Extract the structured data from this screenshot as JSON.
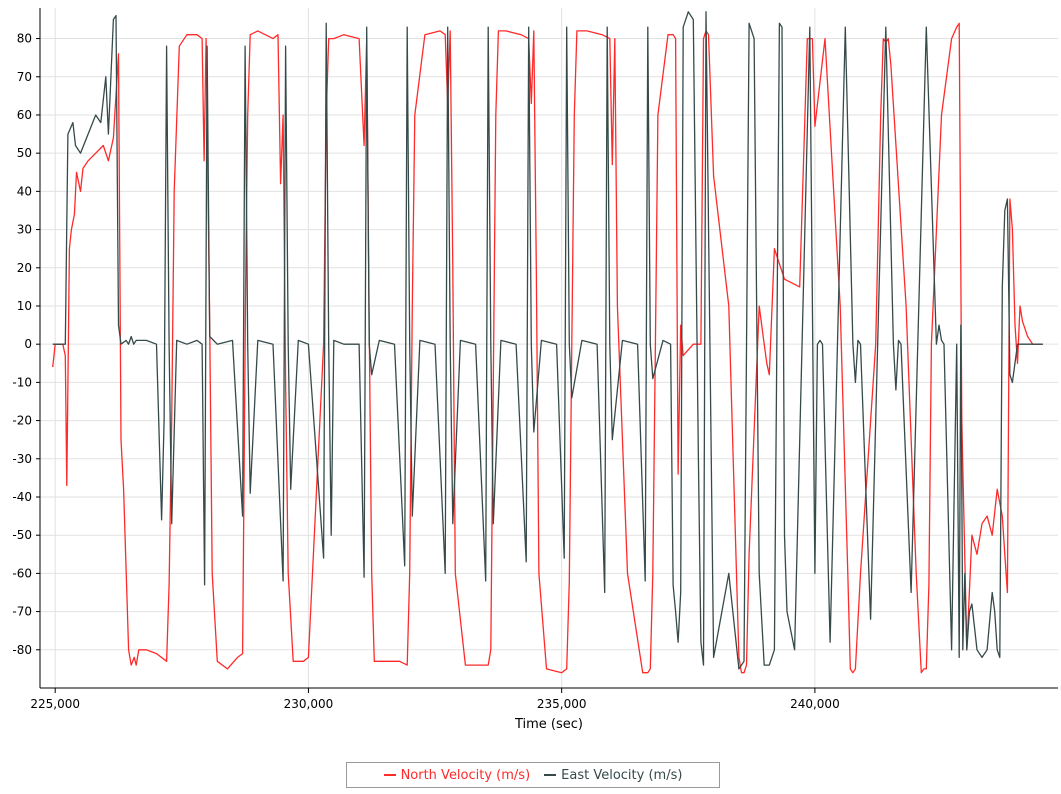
{
  "chart_data": {
    "type": "line",
    "title": "",
    "xlabel": "Time (sec)",
    "ylabel": "",
    "xlim": [
      224700,
      244800
    ],
    "ylim": [
      -90,
      88
    ],
    "xticks": [
      225000,
      230000,
      235000,
      240000
    ],
    "xtick_labels": [
      "225,000",
      "230,000",
      "235,000",
      "240,000"
    ],
    "yticks": [
      80,
      70,
      60,
      50,
      40,
      30,
      20,
      10,
      0,
      -10,
      -20,
      -30,
      -40,
      -50,
      -60,
      -70,
      -80
    ],
    "ytick_labels": [
      "80",
      "70",
      "60",
      "50",
      "40",
      "30",
      "20",
      "10",
      "0",
      "-10",
      "-20",
      "-30",
      "-40",
      "-50",
      "-60",
      "-70",
      "-80"
    ],
    "grid": true,
    "legend_position": "bottom",
    "series": [
      {
        "name": "North Velocity (m/s)",
        "color": "#ff2a2a",
        "x": [
          224950,
          225000,
          225150,
          225200,
          225230,
          225280,
          225320,
          225380,
          225420,
          225500,
          225550,
          225650,
          225800,
          225950,
          226050,
          226150,
          226250,
          226300,
          226350,
          226450,
          226500,
          226560,
          226600,
          226650,
          226800,
          227000,
          227200,
          227250,
          227300,
          227350,
          227450,
          227600,
          227800,
          227900,
          227940,
          227980,
          228050,
          228100,
          228200,
          228400,
          228600,
          228700,
          228760,
          228800,
          228850,
          229000,
          229300,
          229400,
          229450,
          229500,
          229550,
          229600,
          229700,
          229900,
          230000,
          230300,
          230350,
          230400,
          230450,
          230500,
          230700,
          231000,
          231100,
          231150,
          231200,
          231250,
          231300,
          231500,
          231800,
          231950,
          232000,
          232050,
          232100,
          232300,
          232600,
          232700,
          232750,
          232800,
          232850,
          232900,
          233100,
          233400,
          233550,
          233600,
          233650,
          233700,
          233750,
          233900,
          234200,
          234350,
          234400,
          234450,
          234500,
          234550,
          234700,
          235000,
          235100,
          235150,
          235200,
          235250,
          235300,
          235500,
          235800,
          235950,
          236000,
          236050,
          236100,
          236300,
          236600,
          236700,
          236750,
          236800,
          236850,
          236900,
          237100,
          237200,
          237250,
          237300,
          237350,
          237400,
          237600,
          237750,
          237800,
          237850,
          237900,
          238000,
          238300,
          238500,
          238550,
          238600,
          238650,
          238700,
          238900,
          239000,
          239050,
          239100,
          239200,
          239400,
          239700,
          239850,
          239900,
          239950,
          240000,
          240200,
          240500,
          240650,
          240700,
          240750,
          240800,
          240900,
          241200,
          241300,
          241350,
          241400,
          241450,
          241500,
          241800,
          242000,
          242100,
          242150,
          242200,
          242250,
          242300,
          242500,
          242700,
          242800,
          242850,
          242900,
          243000,
          243100,
          243200,
          243300,
          243400,
          243500,
          243600,
          243700,
          243750,
          243800,
          243850,
          243900,
          243950,
          244000,
          244050,
          244100,
          244200,
          244300,
          244500
        ],
        "y": [
          -6,
          0,
          0,
          -3,
          -37,
          25,
          30,
          34,
          45,
          40,
          46,
          48,
          50,
          52,
          48,
          54,
          76,
          -25,
          -38,
          -80,
          -84,
          -82,
          -84,
          -80,
          -80,
          -81,
          -83,
          -63,
          -20,
          40,
          78,
          81,
          81,
          80,
          48,
          80,
          5,
          -60,
          -83,
          -85,
          -82,
          -81,
          15,
          60,
          81,
          82,
          80,
          81,
          42,
          60,
          -10,
          -60,
          -83,
          -83,
          -82,
          0,
          60,
          80,
          80,
          80,
          81,
          80,
          52,
          80,
          5,
          -60,
          -83,
          -83,
          -83,
          -84,
          -60,
          10,
          60,
          81,
          82,
          81,
          63,
          82,
          20,
          -60,
          -84,
          -84,
          -84,
          -80,
          -10,
          60,
          82,
          82,
          81,
          80,
          63,
          82,
          20,
          -60,
          -85,
          -86,
          -85,
          -62,
          0,
          60,
          82,
          82,
          81,
          80,
          47,
          80,
          10,
          -60,
          -86,
          -86,
          -85,
          -60,
          0,
          60,
          81,
          81,
          80,
          -34,
          5,
          -3,
          0,
          0,
          80,
          82,
          81,
          44,
          10,
          -82,
          -86,
          -86,
          -84,
          -55,
          10,
          0,
          -5,
          -8,
          25,
          17,
          15,
          80,
          80,
          80,
          57,
          80,
          10,
          -60,
          -85,
          -86,
          -85,
          -60,
          0,
          60,
          80,
          79,
          80,
          73,
          10,
          -60,
          -86,
          -85,
          -85,
          -63,
          0,
          60,
          80,
          83,
          84,
          -20,
          -80,
          -50,
          -55,
          -47,
          -45,
          -50,
          -38,
          -45,
          -55,
          -65,
          38,
          30,
          5,
          -5,
          10,
          6,
          2,
          0,
          0
        ]
      },
      {
        "name": "East Velocity (m/s)",
        "color": "#364a4a",
        "x": [
          224950,
          225100,
          225200,
          225250,
          225350,
          225400,
          225500,
          225650,
          225800,
          225900,
          226000,
          226050,
          226150,
          226200,
          226250,
          226300,
          226400,
          226450,
          226500,
          226550,
          226600,
          226800,
          227000,
          227100,
          227150,
          227200,
          227250,
          227300,
          227400,
          227600,
          227800,
          227900,
          227950,
          228000,
          228050,
          228200,
          228500,
          228700,
          228750,
          228800,
          228850,
          229000,
          229300,
          229500,
          229550,
          229600,
          229650,
          229800,
          230000,
          230300,
          230350,
          230400,
          230450,
          230500,
          230700,
          231000,
          231100,
          231150,
          231200,
          231250,
          231400,
          231700,
          231900,
          231950,
          232000,
          232050,
          232200,
          232500,
          232700,
          232750,
          232800,
          232850,
          233000,
          233300,
          233500,
          233550,
          233600,
          233650,
          233800,
          234100,
          234300,
          234350,
          234400,
          234450,
          234600,
          234900,
          235050,
          235100,
          235150,
          235200,
          235400,
          235700,
          235850,
          235900,
          235950,
          236000,
          236200,
          236500,
          236650,
          236700,
          236750,
          236800,
          237000,
          237150,
          237200,
          237250,
          237300,
          237350,
          237400,
          237500,
          237600,
          237700,
          237750,
          237800,
          237850,
          238000,
          238300,
          238500,
          238600,
          238700,
          238800,
          238900,
          239000,
          239100,
          239200,
          239300,
          239350,
          239400,
          239450,
          239600,
          239900,
          240000,
          240050,
          240100,
          240150,
          240300,
          240600,
          240750,
          240800,
          240850,
          240900,
          241100,
          241400,
          241550,
          241600,
          241650,
          241700,
          241900,
          242200,
          242400,
          242450,
          242500,
          242550,
          242700,
          242800,
          242850,
          242880,
          242920,
          242960,
          243000,
          243050,
          243100,
          243200,
          243300,
          243400,
          243500,
          243550,
          243600,
          243650,
          243700,
          243750,
          243800,
          243850,
          243900,
          244000,
          244100,
          244500
        ],
        "y": [
          0,
          0,
          0,
          55,
          58,
          52,
          50,
          55,
          60,
          58,
          70,
          55,
          85,
          86,
          5,
          0,
          1,
          0,
          2,
          0,
          1,
          1,
          0,
          -46,
          -20,
          78,
          0,
          -47,
          1,
          0,
          1,
          0,
          -63,
          78,
          2,
          0,
          1,
          -45,
          78,
          0,
          -39,
          1,
          0,
          -62,
          78,
          0,
          -38,
          1,
          0,
          -56,
          84,
          0,
          -50,
          1,
          0,
          0,
          -61,
          83,
          0,
          -8,
          1,
          0,
          -58,
          83,
          0,
          -45,
          1,
          0,
          -60,
          83,
          0,
          -47,
          1,
          0,
          -62,
          83,
          0,
          -47,
          1,
          0,
          -57,
          83,
          0,
          -23,
          1,
          0,
          -56,
          83,
          0,
          -14,
          1,
          0,
          -65,
          83,
          0,
          -25,
          1,
          0,
          -62,
          83,
          0,
          -9,
          1,
          0,
          -63,
          -70,
          -78,
          -65,
          83,
          87,
          85,
          -30,
          -78,
          -84,
          87,
          -82,
          -60,
          -85,
          -83,
          84,
          80,
          -60,
          -84,
          -84,
          -80,
          84,
          83,
          -50,
          -70,
          -80,
          83,
          -60,
          0,
          1,
          0,
          -78,
          83,
          0,
          -10,
          1,
          0,
          -72,
          83,
          0,
          -12,
          1,
          0,
          -65,
          83,
          0,
          5,
          1,
          0,
          -80,
          0,
          -82,
          5,
          -80,
          -60,
          -80,
          -70,
          -68,
          -80,
          -82,
          -80,
          -65,
          -70,
          -80,
          -82,
          15,
          35,
          38,
          -8,
          -10,
          0,
          0,
          0
        ]
      }
    ]
  }
}
